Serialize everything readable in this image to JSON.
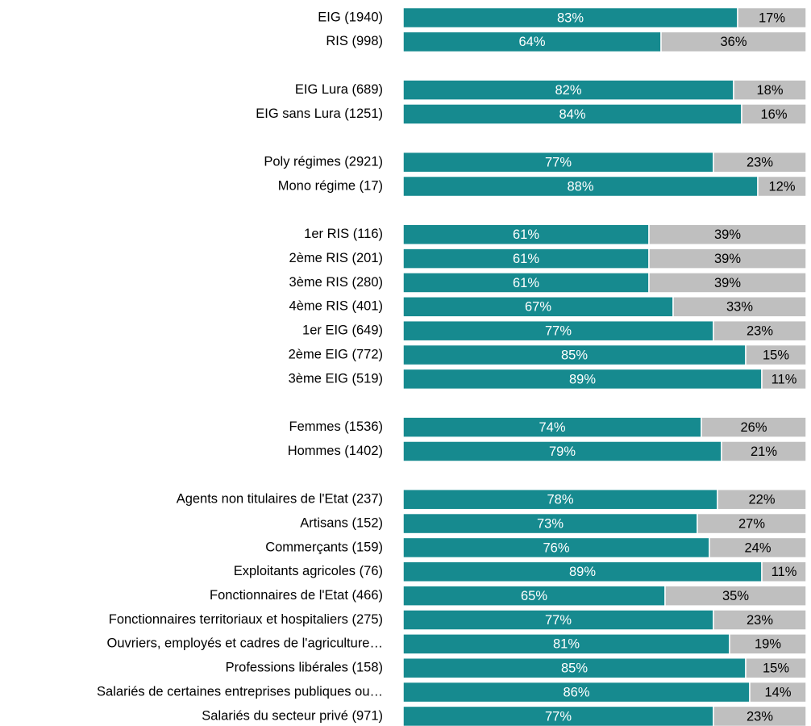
{
  "chart_data": {
    "type": "stacked_bar_horizontal",
    "categories": [
      "EIG (1940)",
      "RIS (998)",
      null,
      "EIG Lura (689)",
      "EIG sans Lura (1251)",
      null,
      "Poly régimes (2921)",
      "Mono régime (17)",
      null,
      "1er RIS (116)",
      "2ème RIS (201)",
      "3ème RIS (280)",
      "4ème RIS (401)",
      "1er EIG (649)",
      "2ème EIG (772)",
      "3ème EIG (519)",
      null,
      "Femmes (1536)",
      "Hommes (1402)",
      null,
      "Agents non titulaires de l'Etat (237)",
      "Artisans (152)",
      "Commerçants (159)",
      "Exploitants agricoles (76)",
      "Fonctionnaires de l'Etat (466)",
      "Fonctionnaires territoriaux et hospitaliers (275)",
      "Ouvriers, employés et cadres de l'agriculture…",
      "Professions libérales (158)",
      "Salariés de certaines entreprises publiques ou…",
      "Salariés du secteur privé (971)"
    ],
    "xlim": [
      0,
      100
    ],
    "series": [
      {
        "color": "#168a8f",
        "label_color": "#ffffff",
        "values": [
          83,
          64,
          null,
          82,
          84,
          null,
          77,
          88,
          null,
          61,
          61,
          61,
          67,
          77,
          85,
          89,
          null,
          74,
          79,
          null,
          78,
          73,
          76,
          89,
          65,
          77,
          81,
          85,
          86,
          77
        ],
        "value_labels": [
          "83%",
          "64%",
          null,
          "82%",
          "84%",
          null,
          "77%",
          "88%",
          null,
          "61%",
          "61%",
          "61%",
          "67%",
          "77%",
          "85%",
          "89%",
          null,
          "74%",
          "79%",
          null,
          "78%",
          "73%",
          "76%",
          "89%",
          "65%",
          "77%",
          "81%",
          "85%",
          "86%",
          "77%"
        ]
      },
      {
        "color": "#bfbfbf",
        "label_color": "#000000",
        "values": [
          17,
          36,
          null,
          18,
          16,
          null,
          23,
          12,
          null,
          39,
          39,
          39,
          33,
          23,
          15,
          11,
          null,
          26,
          21,
          null,
          22,
          27,
          24,
          11,
          35,
          23,
          19,
          15,
          14,
          23
        ],
        "value_labels": [
          "17%",
          "36%",
          null,
          "18%",
          "16%",
          null,
          "23%",
          "12%",
          null,
          "39%",
          "39%",
          "39%",
          "33%",
          "23%",
          "15%",
          "11%",
          null,
          "26%",
          "21%",
          null,
          "22%",
          "27%",
          "24%",
          "11%",
          "35%",
          "23%",
          "19%",
          "15%",
          "14%",
          "23%"
        ]
      }
    ]
  }
}
